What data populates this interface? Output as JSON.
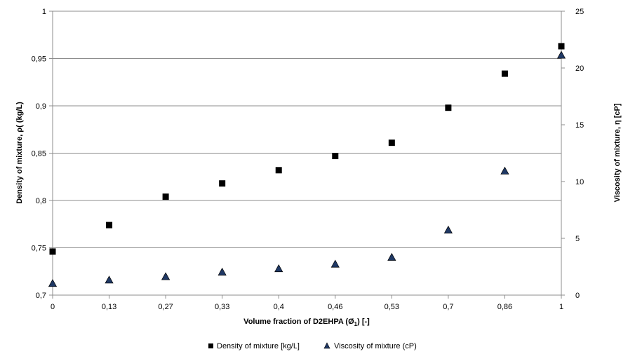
{
  "chart_data": {
    "type": "scatter",
    "categories": [
      "0",
      "0,13",
      "0,27",
      "0,33",
      "0,4",
      "0,46",
      "0,53",
      "0,7",
      "0,86",
      "1"
    ],
    "xlabel": "Volume fraction of D2EHPA (Ø",
    "xlabel_sub": "1",
    "xlabel_tail": ") [-]",
    "ylabel_left": "Density of mixture, ρ( (kg/L)",
    "ylabel_right": "Viscosity of mixture, η [cP]",
    "y_left": {
      "min": 0.7,
      "max": 1.0,
      "ticks": [
        "0,7",
        "0,75",
        "0,8",
        "0,85",
        "0,9",
        "0,95",
        "1"
      ],
      "tick_values": [
        0.7,
        0.75,
        0.8,
        0.85,
        0.9,
        0.95,
        1.0
      ]
    },
    "y_right": {
      "min": 0,
      "max": 25,
      "ticks": [
        "0",
        "5",
        "10",
        "15",
        "20",
        "25"
      ],
      "tick_values": [
        0,
        5,
        10,
        15,
        20,
        25
      ]
    },
    "grid": true,
    "legend_position": "bottom",
    "series": [
      {
        "name": "Density of mixture [kg/L]",
        "axis": "left",
        "marker": "square",
        "color": "#000000",
        "values": [
          0.746,
          0.774,
          0.804,
          0.818,
          0.832,
          0.847,
          0.861,
          0.898,
          0.934,
          0.963
        ]
      },
      {
        "name": "Viscosity of mixture  (cP)",
        "axis": "right",
        "marker": "triangle",
        "color": "#1f3864",
        "values": [
          1.0,
          1.3,
          1.6,
          2.0,
          2.3,
          2.7,
          3.3,
          5.7,
          10.9,
          21.1
        ]
      }
    ]
  }
}
